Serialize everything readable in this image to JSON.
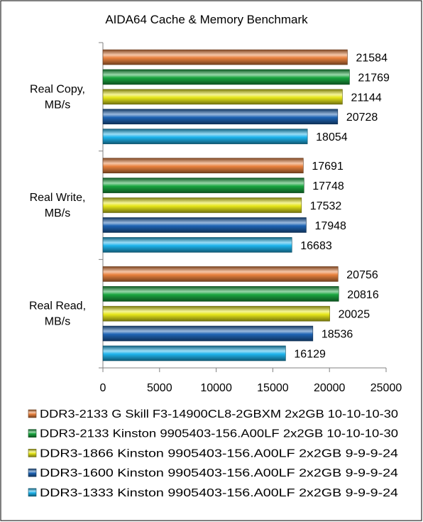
{
  "chart_data": {
    "type": "bar",
    "orientation": "horizontal",
    "title": "AIDA64 Cache & Memory Benchmark",
    "xlabel": "",
    "ylabel": "",
    "categories": [
      [
        "Real Copy,",
        "MB/s"
      ],
      [
        "Real Write,",
        "MB/s"
      ],
      [
        "Real Read,",
        "MB/s"
      ]
    ],
    "xlim": [
      0,
      25000
    ],
    "xticks": [
      "0",
      "5000",
      "10000",
      "15000",
      "20000",
      "25000"
    ],
    "grid": false,
    "legend_position": "bottom",
    "series": [
      {
        "name": "DDR3-2133 G Skill F3-14900CL8-2GBXM 2x2GB 10-10-10-30",
        "color": "#e8813e",
        "values": [
          21584,
          17691,
          20756
        ]
      },
      {
        "name": "DDR3-2133 Kinston 9905403-156.A00LF 2x2GB 10-10-10-30",
        "color": "#1aa640",
        "values": [
          21769,
          17748,
          20816
        ]
      },
      {
        "name": "DDR3-1866 Kinston 9905403-156.A00LF 2x2GB 9-9-9-24",
        "color": "#e6e61a",
        "values": [
          21144,
          17532,
          20025
        ]
      },
      {
        "name": "DDR3-1600 Kinston 9905403-156.A00LF 2x2GB 9-9-9-24",
        "color": "#1e64b4",
        "values": [
          20728,
          17948,
          18536
        ]
      },
      {
        "name": "DDR3-1333 Kinston 9905403-156.A00LF 2x2GB 9-9-9-24",
        "color": "#1eb4ec",
        "values": [
          18054,
          16683,
          16129
        ]
      }
    ]
  }
}
